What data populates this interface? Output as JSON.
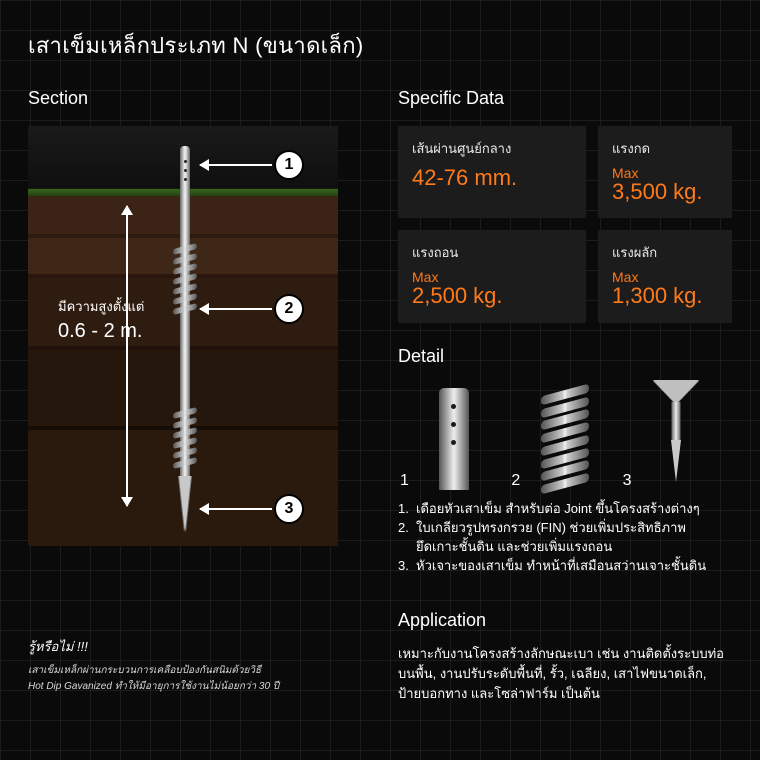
{
  "accent_color": "#ff7a1a",
  "card_bg": "#1c1c1c",
  "title": "เสาเข็มเหล็กประเภท N (ขนาดเล็ก)",
  "section": {
    "heading": "Section",
    "height_label": "มีความสูงตั้งแต่",
    "height_value": "0.6 - 2 m.",
    "callouts": [
      "1",
      "2",
      "3"
    ]
  },
  "tip": {
    "title": "รู้หรือไม่ !!!",
    "line1": "เสาเข็มเหล็กผ่านกระบวนการเคลือบป้องกันสนิมด้วยวิธี",
    "line2": "Hot Dip Gavanized ทำให้มีอายุการใช้งานไม่น้อยกว่า 30 ปี"
  },
  "specific": {
    "heading": "Specific Data",
    "cards": [
      {
        "label": "เส้นผ่านศูนย์กลาง",
        "prefix": "",
        "value": "42-76 mm."
      },
      {
        "label": "แรงกด",
        "prefix": "Max",
        "value": "3,500 kg."
      },
      {
        "label": "แรงถอน",
        "prefix": "Max",
        "value": "2,500 kg."
      },
      {
        "label": "แรงผลัก",
        "prefix": "Max",
        "value": "1,300 kg."
      }
    ]
  },
  "detail": {
    "heading": "Detail",
    "nums": [
      "1",
      "2",
      "3"
    ],
    "items": [
      {
        "n": "1.",
        "t": "เดือยหัวเสาเข็ม สำหรับต่อ Joint ขึ้นโครงสร้างต่างๆ"
      },
      {
        "n": "2.",
        "t": "ใบเกลียวรูปทรงกรวย (FIN) ช่วยเพิ่มประสิทธิภาพ"
      },
      {
        "n": "",
        "t": "ยึดเกาะชั้นดิน และช่วยเพิ่มแรงถอน"
      },
      {
        "n": "3.",
        "t": "หัวเจาะของเสาเข็ม ทำหน้าที่เสมือนสว่านเจาะชั้นดิน"
      }
    ]
  },
  "application": {
    "heading": "Application",
    "text": "เหมาะกับงานโครงสร้างลักษณะเบา เช่น งานติดตั้งระบบท่อบนพื้น, งานปรับระดับพื้นที่, รั้ว, เฉลียง, เสาไฟขนาดเล็ก, ป้ายบอกทาง และโซล่าฟาร์ม เป็นต้น"
  }
}
